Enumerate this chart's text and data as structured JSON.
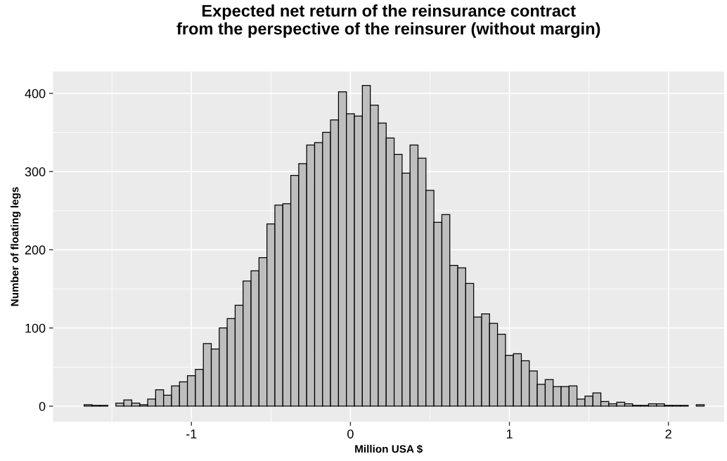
{
  "chart_data": {
    "type": "histogram",
    "title": "Expected net return of the reinsurance contract\nfrom the perspective of the reinsurer (without margin)",
    "xlabel": "Million USA $",
    "ylabel": "Number of floating legs",
    "bins": [
      -1.675,
      -1.625,
      -1.575,
      -1.525,
      -1.475,
      -1.425,
      -1.375,
      -1.325,
      -1.275,
      -1.225,
      -1.175,
      -1.125,
      -1.075,
      -1.025,
      -0.975,
      -0.925,
      -0.875,
      -0.825,
      -0.775,
      -0.725,
      -0.675,
      -0.625,
      -0.575,
      -0.525,
      -0.475,
      -0.425,
      -0.375,
      -0.325,
      -0.275,
      -0.225,
      -0.175,
      -0.125,
      -0.075,
      -0.025,
      0.025,
      0.075,
      0.125,
      0.175,
      0.225,
      0.275,
      0.325,
      0.375,
      0.425,
      0.475,
      0.525,
      0.575,
      0.625,
      0.675,
      0.725,
      0.775,
      0.825,
      0.875,
      0.925,
      0.975,
      1.025,
      1.075,
      1.125,
      1.175,
      1.225,
      1.275,
      1.325,
      1.375,
      1.425,
      1.475,
      1.525,
      1.575,
      1.625,
      1.675,
      1.725,
      1.775,
      1.825,
      1.875,
      1.925,
      1.975,
      2.025,
      2.075,
      2.125,
      2.175,
      2.225
    ],
    "values": [
      2,
      1,
      1,
      0,
      4,
      8,
      4,
      2,
      9,
      21,
      14,
      26,
      31,
      39,
      47,
      80,
      73,
      100,
      112,
      129,
      160,
      173,
      190,
      233,
      257,
      259,
      295,
      310,
      334,
      337,
      350,
      366,
      402,
      374,
      371,
      410,
      385,
      362,
      343,
      322,
      298,
      334,
      317,
      276,
      235,
      245,
      180,
      177,
      157,
      114,
      118,
      106,
      92,
      65,
      67,
      58,
      45,
      28,
      34,
      25,
      25,
      26,
      9,
      13,
      17,
      6,
      3,
      5,
      3,
      1,
      1,
      3,
      3,
      1,
      1,
      1,
      0,
      2
    ],
    "color": "#bebebe",
    "xlim": [
      -1.87,
      2.35
    ],
    "ylim": [
      -20,
      428
    ],
    "xticks": [
      -1,
      0,
      1,
      2
    ],
    "yticks": [
      0,
      100,
      200,
      300,
      400
    ],
    "grid": true
  }
}
